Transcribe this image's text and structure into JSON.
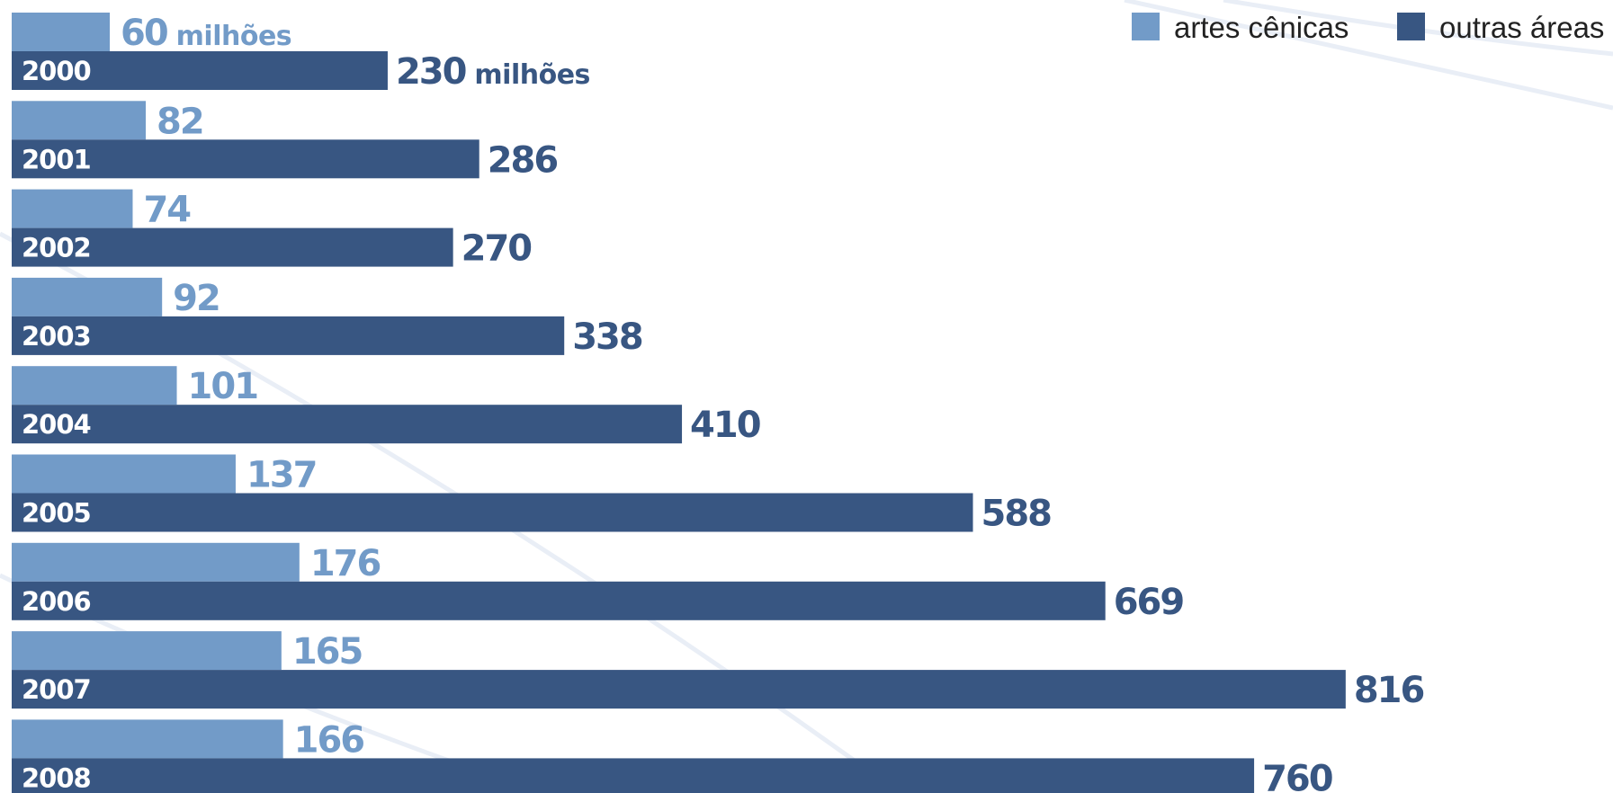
{
  "chart_data": {
    "type": "bar",
    "orientation": "horizontal",
    "categories": [
      "2000",
      "2001",
      "2002",
      "2003",
      "2004",
      "2005",
      "2006",
      "2007",
      "2008"
    ],
    "series": [
      {
        "name": "artes cênicas",
        "values": [
          60,
          82,
          74,
          92,
          101,
          137,
          176,
          165,
          166
        ],
        "color": "#729bc8"
      },
      {
        "name": "outras áreas",
        "values": [
          230,
          286,
          270,
          338,
          410,
          588,
          669,
          816,
          760
        ],
        "color": "#385682"
      }
    ],
    "first_value_unit": "milhões",
    "xlim": [
      0,
      816
    ],
    "grid": false,
    "legend": "top-right"
  }
}
